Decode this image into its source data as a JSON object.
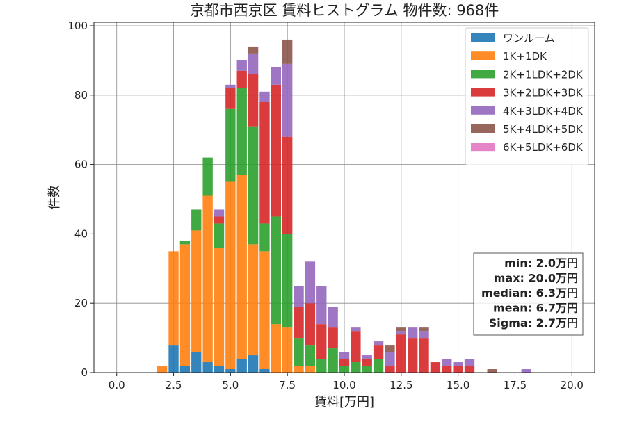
{
  "chart_data": {
    "type": "bar",
    "stacked": true,
    "title": "京都市西京区 賃料ヒストグラム  物件数: 968件",
    "xlabel": "賃料[万円]",
    "ylabel": "件数",
    "xlim": [
      -1.0,
      21.0
    ],
    "ylim": [
      0,
      101
    ],
    "xticks": [
      0.0,
      2.5,
      5.0,
      7.5,
      10.0,
      12.5,
      15.0,
      17.5,
      20.0
    ],
    "xtick_labels": [
      "0.0",
      "2.5",
      "5.0",
      "7.5",
      "10.0",
      "12.5",
      "15.0",
      "17.5",
      "20.0"
    ],
    "yticks": [
      0,
      20,
      40,
      60,
      80,
      100
    ],
    "ytick_labels": [
      "0",
      "20",
      "40",
      "60",
      "80",
      "100"
    ],
    "grid": true,
    "legend_position": "top-right",
    "bin_width": 0.5,
    "x": [
      2.0,
      2.5,
      3.0,
      3.5,
      4.0,
      4.5,
      5.0,
      5.5,
      6.0,
      6.5,
      7.0,
      7.5,
      8.0,
      8.5,
      9.0,
      9.5,
      10.0,
      10.5,
      11.0,
      11.5,
      12.0,
      12.5,
      13.0,
      13.5,
      14.0,
      14.5,
      15.0,
      15.5,
      16.0,
      16.5,
      17.0,
      17.5,
      18.0
    ],
    "series": [
      {
        "name": "ワンルーム",
        "color": "#1f77b4",
        "values": [
          0,
          8,
          2,
          6,
          3,
          2,
          1,
          4,
          5,
          1,
          0,
          0,
          0,
          0,
          0,
          0,
          0,
          0,
          0,
          0,
          0,
          0,
          0,
          0,
          0,
          0,
          0,
          0,
          0,
          0,
          0,
          0,
          0
        ]
      },
      {
        "name": "1K+1DK",
        "color": "#ff7f0e",
        "values": [
          2,
          27,
          35,
          35,
          48,
          34,
          54,
          53,
          32,
          34,
          14,
          13,
          2,
          2,
          0,
          0,
          0,
          0,
          0,
          0,
          0,
          0,
          0,
          0,
          0,
          0,
          0,
          0,
          0,
          0,
          0,
          0,
          0
        ]
      },
      {
        "name": "2K+1LDK+2DK",
        "color": "#2ca02c",
        "values": [
          0,
          0,
          1,
          6,
          11,
          7,
          21,
          25,
          34,
          8,
          31,
          27,
          8,
          6,
          4,
          7,
          2,
          3,
          2,
          4,
          0,
          0,
          0,
          0,
          0,
          0,
          0,
          0,
          0,
          0,
          0,
          0,
          0
        ]
      },
      {
        "name": "3K+2LDK+3DK",
        "color": "#d62728",
        "values": [
          0,
          0,
          0,
          0,
          0,
          2,
          6,
          5,
          15,
          35,
          38,
          28,
          9,
          12,
          10,
          6,
          2,
          9,
          2,
          4,
          2,
          11,
          10,
          10,
          3,
          2,
          2,
          2,
          0,
          0,
          0,
          0,
          0
        ]
      },
      {
        "name": "4K+3LDK+4DK",
        "color": "#9467bd",
        "values": [
          0,
          0,
          0,
          0,
          0,
          2,
          1,
          3,
          6,
          3,
          5,
          21,
          6,
          12,
          11,
          6,
          2,
          1,
          1,
          1,
          4,
          1,
          3,
          2,
          0,
          2,
          1,
          2,
          0,
          0,
          0,
          0,
          1
        ]
      },
      {
        "name": "5K+4LDK+5DK",
        "color": "#8c564b",
        "values": [
          0,
          0,
          0,
          0,
          0,
          0,
          0,
          0,
          2,
          0,
          0,
          7,
          0,
          0,
          0,
          0,
          0,
          0,
          0,
          0,
          2,
          1,
          0,
          1,
          0,
          0,
          0,
          0,
          0,
          1,
          0,
          0,
          0
        ]
      },
      {
        "name": "6K+5LDK+6DK",
        "color": "#e377c2",
        "values": [
          0,
          0,
          0,
          0,
          0,
          0,
          0,
          0,
          0,
          0,
          0,
          0,
          0,
          0,
          0,
          0,
          0,
          0,
          0,
          0,
          0,
          0,
          0,
          0,
          0,
          0,
          0,
          0,
          0,
          0,
          0,
          0,
          0
        ]
      }
    ],
    "stats_box": [
      "min: 2.0万円",
      "max: 20.0万円",
      "median: 6.3万円",
      "mean: 6.7万円",
      "Sigma: 2.7万円"
    ],
    "bar_alpha": 0.9,
    "gridline_color": "#8a8a8a"
  }
}
